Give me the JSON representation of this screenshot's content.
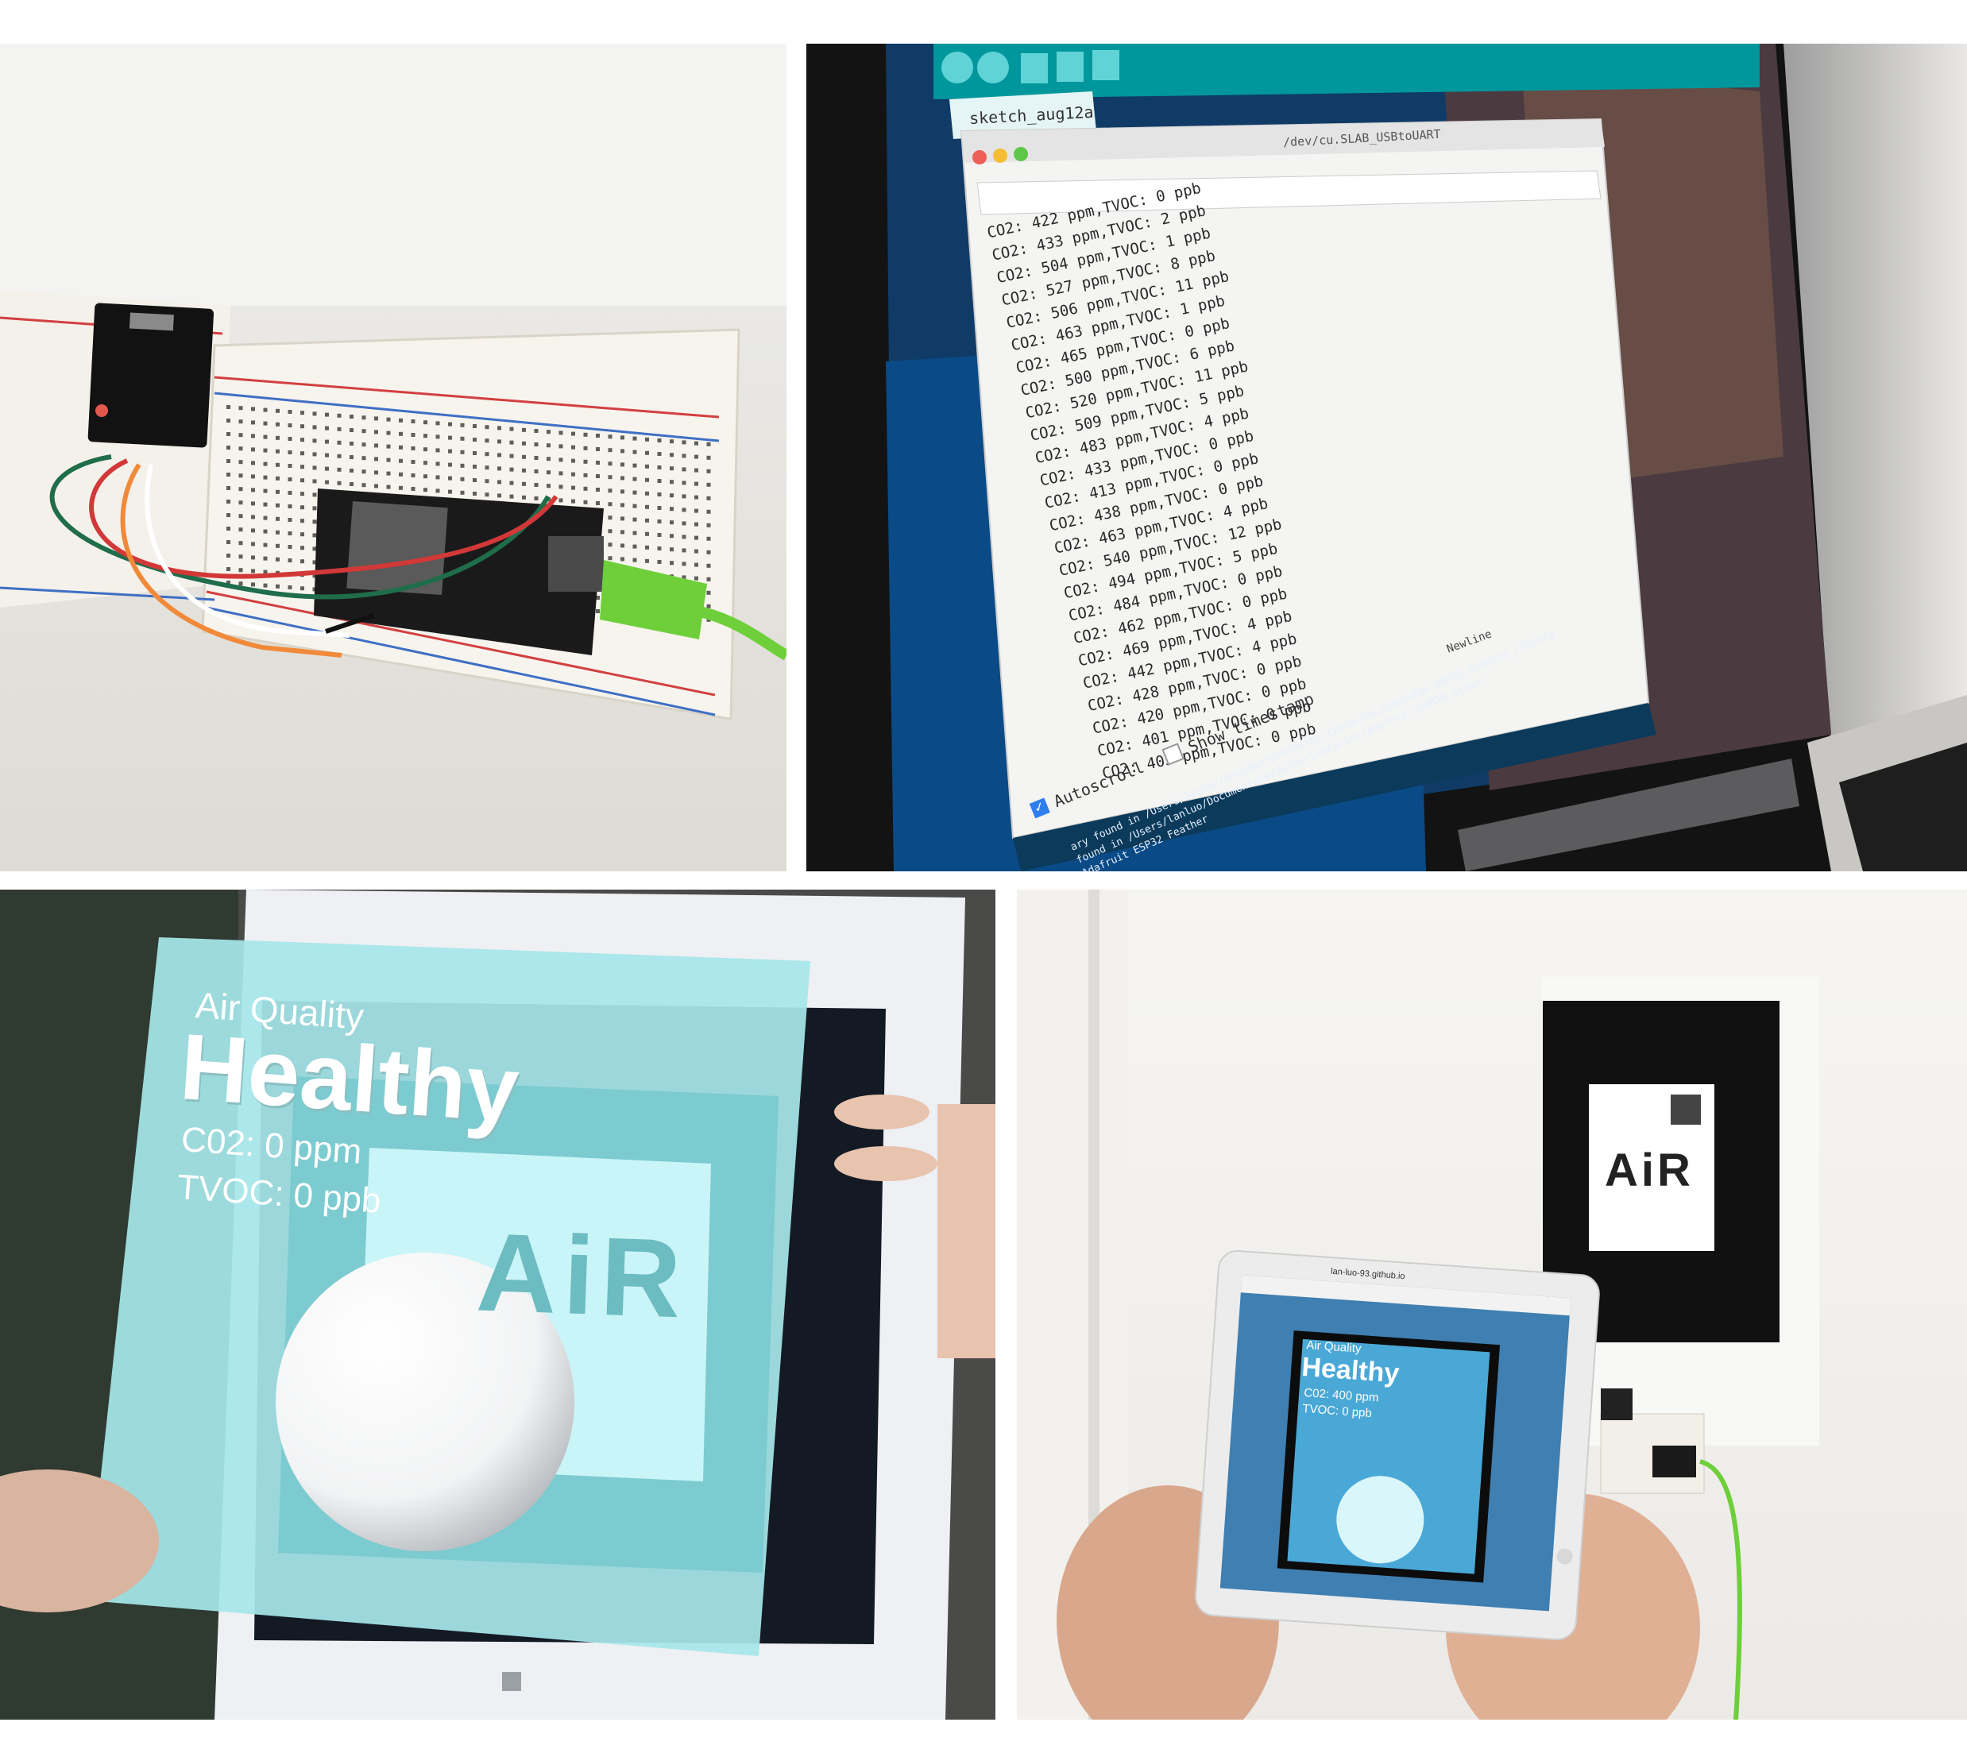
{
  "panel2": {
    "tab": "sketch_aug12a",
    "port": "/dev/cu.SLAB_USBtoUART",
    "serial_lines": [
      "CO2: 422 ppm,TVOC: 0 ppb",
      "CO2: 433 ppm,TVOC: 2 ppb",
      "CO2: 504 ppm,TVOC: 1 ppb",
      "CO2: 527 ppm,TVOC: 8 ppb",
      "CO2: 506 ppm,TVOC: 11 ppb",
      "CO2: 463 ppm,TVOC: 1 ppb",
      "CO2: 465 ppm,TVOC: 0 ppb",
      "CO2: 500 ppm,TVOC: 6 ppb",
      "CO2: 520 ppm,TVOC: 11 ppb",
      "CO2: 509 ppm,TVOC: 5 ppb",
      "CO2: 483 ppm,TVOC: 4 ppb",
      "CO2: 433 ppm,TVOC: 0 ppb",
      "CO2: 413 ppm,TVOC: 0 ppb",
      "CO2: 438 ppm,TVOC: 0 ppb",
      "CO2: 463 ppm,TVOC: 4 ppb",
      "CO2: 540 ppm,TVOC: 12 ppb",
      "CO2: 494 ppm,TVOC: 5 ppb",
      "CO2: 484 ppm,TVOC: 0 ppb",
      "CO2: 462 ppm,TVOC: 0 ppb",
      "CO2: 469 ppm,TVOC: 4 ppb",
      "CO2: 442 ppm,TVOC: 4 ppb",
      "CO2: 428 ppm,TVOC: 0 ppb",
      "CO2: 420 ppm,TVOC: 0 ppb",
      "CO2: 401 ppm,TVOC: 0 ppb",
      "CO2: 403 ppm,TVOC: 0 ppb"
    ],
    "autoscroll": "Autoscroll",
    "show_timestamp": "Show timestamp",
    "newline": "Newline",
    "console_lines": [
      "ary found in /Users/lanluo/Documents/Arduino/libraries/SparkFun_SGP30_Arduino_Library",
      "found in /Users/lanluo/Documents/Arduino/libraries/Adafruit_SGP30_Sensor",
      "Adafruit ESP32 Feather"
    ]
  },
  "panel3": {
    "label": "Air Quality",
    "status": "Healthy",
    "co2": "C02: 0 ppm",
    "tvoc": "TVOC: 0 ppb",
    "marker_text": "AiR"
  },
  "panel4": {
    "marker_text": "AiR",
    "url": "lan-luo-93.github.io",
    "label": "Air Quality",
    "status": "Healthy",
    "co2": "C02: 400 ppm",
    "tvoc": "TVOC: 0 ppb"
  },
  "colors": {
    "ar_panel": "#a6e6ea",
    "ar_text": "#ffffff",
    "arduino_teal": "#00979c",
    "usb_green": "#6ecf3a"
  }
}
